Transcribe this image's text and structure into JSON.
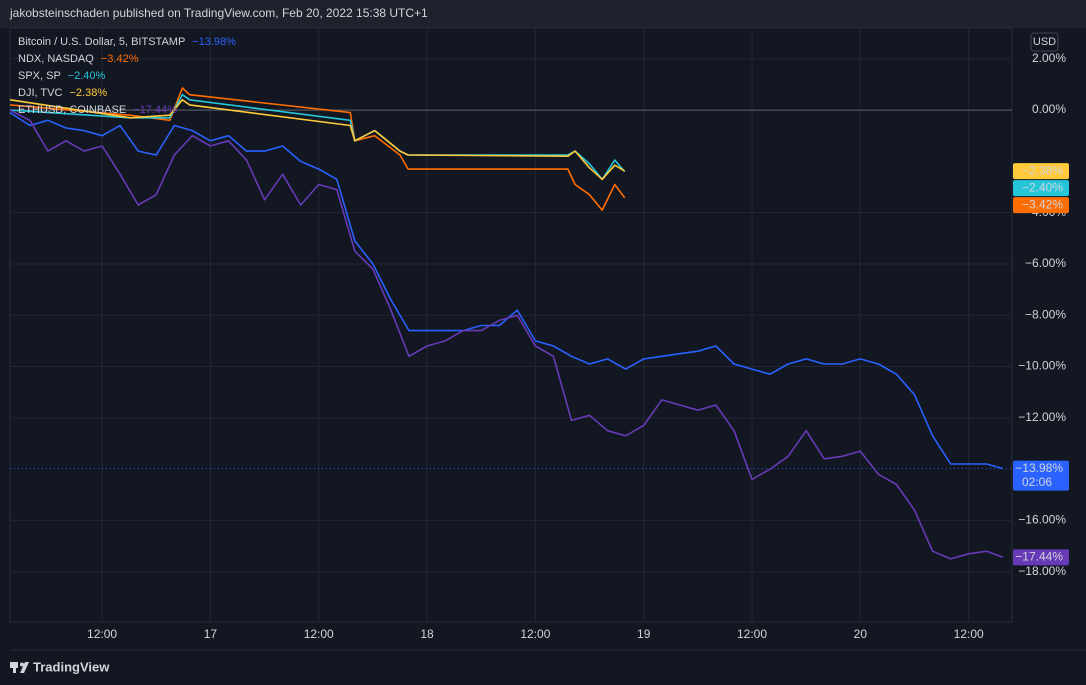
{
  "header": "jakobsteinschaden published on TradingView.com, Feb 20, 2022 15:38 UTC+1",
  "footer": "TradingView",
  "currency_button": "USD",
  "chart_data": {
    "type": "line",
    "xlim": [
      1.8,
      112.8
    ],
    "xticks": [
      {
        "value": 12,
        "label": "12:00"
      },
      {
        "value": 24,
        "label": "17"
      },
      {
        "value": 36,
        "label": "12:00"
      },
      {
        "value": 48,
        "label": "18"
      },
      {
        "value": 60,
        "label": "12:00"
      },
      {
        "value": 72,
        "label": "19"
      },
      {
        "value": 84,
        "label": "12:00"
      },
      {
        "value": 96,
        "label": "20"
      },
      {
        "value": 108,
        "label": "12:00"
      }
    ],
    "ylim": [
      -19.96,
      3.2
    ],
    "yticks": [
      {
        "value": 2,
        "label": "2.00%"
      },
      {
        "value": 0,
        "label": "0.00%"
      },
      {
        "value": -4,
        "label": "−4.00%"
      },
      {
        "value": -6,
        "label": "−6.00%"
      },
      {
        "value": -8,
        "label": "−8.00%"
      },
      {
        "value": -10,
        "label": "−10.00%"
      },
      {
        "value": -12,
        "label": "−12.00%"
      },
      {
        "value": -16,
        "label": "−16.00%"
      },
      {
        "value": -18,
        "label": "−18.00%"
      }
    ],
    "grid": true,
    "series": [
      {
        "name": "Bitcoin / U.S. Dollar, 5, BITSTAMP",
        "color": "#2962ff",
        "value_label": "−13.98%",
        "countdown": "02:06",
        "x": [
          1.8,
          4,
          6,
          8,
          10,
          12,
          14,
          16,
          18,
          20,
          22,
          24,
          26,
          28,
          30,
          32,
          34,
          36,
          38,
          40,
          42,
          44,
          46,
          48,
          50,
          52,
          54,
          56,
          58,
          60,
          62,
          64,
          66,
          68,
          70,
          72,
          74,
          76,
          78,
          80,
          82,
          84,
          86,
          88,
          90,
          92,
          94,
          96,
          98,
          100,
          102,
          104,
          106,
          108,
          110,
          111.8
        ],
        "values": [
          -0.1,
          -0.6,
          -0.4,
          -0.7,
          -0.8,
          -1.0,
          -0.6,
          -1.6,
          -1.75,
          -0.6,
          -0.8,
          -1.2,
          -1.0,
          -1.6,
          -1.6,
          -1.4,
          -2.0,
          -2.3,
          -2.7,
          -5.1,
          -6.0,
          -7.4,
          -8.6,
          -8.6,
          -8.6,
          -8.6,
          -8.4,
          -8.4,
          -7.8,
          -9.0,
          -9.2,
          -9.6,
          -9.9,
          -9.7,
          -10.1,
          -9.7,
          -9.6,
          -9.5,
          -9.4,
          -9.2,
          -9.9,
          -10.1,
          -10.3,
          -9.9,
          -9.7,
          -9.9,
          -9.9,
          -9.7,
          -9.9,
          -10.3,
          -11.1,
          -12.7,
          -13.8,
          -13.8,
          -13.8,
          -13.98
        ]
      },
      {
        "name": "NDX, NASDAQ",
        "color": "#ff6d00",
        "value_label": "−3.42%",
        "x": [
          1.8,
          15.1,
          19.5,
          20.9,
          21.7,
          39.5,
          40,
          42.2,
          45,
          45.9,
          63.6,
          64.4,
          66,
          67.4,
          68.8,
          69.9
        ],
        "values": [
          0.2,
          -0.2,
          -0.4,
          0.86,
          0.6,
          -0.1,
          -1.2,
          -1.0,
          -1.75,
          -2.3,
          -2.3,
          -2.9,
          -3.3,
          -3.9,
          -2.9,
          -3.42
        ]
      },
      {
        "name": "SPX, SP",
        "color": "#26c6da",
        "value_label": "−2.40%",
        "x": [
          1.8,
          15.1,
          19.5,
          20.9,
          21.7,
          39.5,
          40,
          42.2,
          45,
          45.9,
          63.6,
          64.4,
          66,
          67.4,
          68.8,
          69.9
        ],
        "values": [
          0,
          -0.3,
          -0.3,
          0.6,
          0.4,
          -0.4,
          -1.2,
          -0.8,
          -1.6,
          -1.75,
          -1.75,
          -1.6,
          -2.1,
          -2.7,
          -1.95,
          -2.4
        ]
      },
      {
        "name": "DJI, TVC",
        "color": "#ffca3a",
        "value_label": "−2.38%",
        "x": [
          1.8,
          15.1,
          19.5,
          20.9,
          21.7,
          39.5,
          40,
          42.2,
          45,
          45.9,
          63.6,
          64.4,
          66,
          67.4,
          68.8,
          69.9
        ],
        "values": [
          0.4,
          -0.3,
          -0.2,
          0.4,
          0.2,
          -0.6,
          -1.2,
          -0.8,
          -1.6,
          -1.75,
          -1.8,
          -1.6,
          -2.25,
          -2.7,
          -2.15,
          -2.38
        ]
      },
      {
        "name": "ETHUSD, COINBASE",
        "color": "#673ab7",
        "value_label": "−17.44%",
        "x": [
          1.8,
          4,
          6,
          8,
          10,
          12,
          14,
          16,
          18,
          20,
          22,
          24,
          26,
          28,
          30,
          32,
          34,
          36,
          38,
          40,
          42,
          44,
          46,
          48,
          50,
          52,
          54,
          56,
          58,
          60,
          62,
          64,
          66,
          68,
          70,
          72,
          74,
          76,
          78,
          80,
          82,
          84,
          86,
          88,
          90,
          92,
          94,
          96,
          98,
          100,
          102,
          104,
          106,
          108,
          110,
          111.8
        ],
        "values": [
          0,
          -0.4,
          -1.6,
          -1.2,
          -1.6,
          -1.4,
          -2.5,
          -3.7,
          -3.3,
          -1.75,
          -1.0,
          -1.4,
          -1.2,
          -1.95,
          -3.5,
          -2.5,
          -3.7,
          -2.9,
          -3.1,
          -5.5,
          -6.2,
          -7.8,
          -9.6,
          -9.2,
          -9.0,
          -8.6,
          -8.6,
          -8.2,
          -8.0,
          -9.2,
          -9.6,
          -12.1,
          -11.9,
          -12.5,
          -12.7,
          -12.3,
          -11.3,
          -11.5,
          -11.7,
          -11.5,
          -12.5,
          -14.4,
          -14.0,
          -13.5,
          -12.5,
          -13.6,
          -13.5,
          -13.3,
          -14.2,
          -14.6,
          -15.6,
          -17.2,
          -17.5,
          -17.3,
          -17.2,
          -17.44
        ]
      }
    ]
  }
}
